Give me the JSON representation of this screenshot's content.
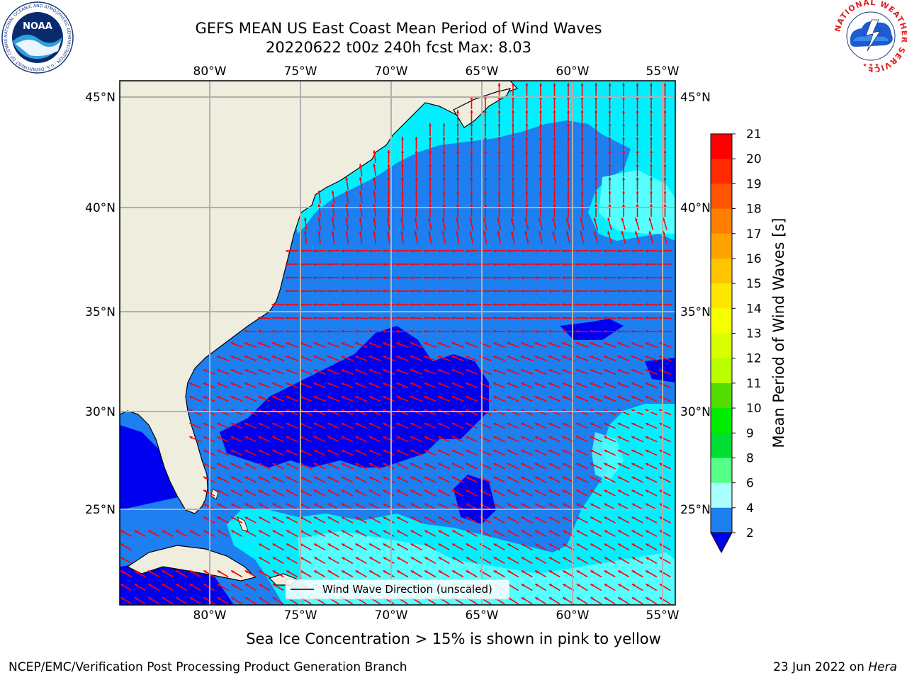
{
  "title": {
    "line1": "GEFS MEAN US East Coast Mean Period of Wind Waves",
    "line2": "20220622 t00z 240h fcst   Max: 8.03"
  },
  "map": {
    "lon_labels": [
      "80°W",
      "75°W",
      "70°W",
      "65°W",
      "60°W",
      "55°W"
    ],
    "lat_labels": [
      "45°N",
      "40°N",
      "35°N",
      "30°N",
      "25°N"
    ],
    "legend_label": "Wind Wave Direction (unscaled)",
    "colors": {
      "land": "#efedde",
      "ocean_2_4": "#1e7ff0",
      "ocean_lt2": "#0000f0",
      "ocean_4_6": "#00f0ff",
      "ocean_6_8": "#55ffff",
      "arrow": "#ff0000",
      "grid": "#b0b0b0"
    }
  },
  "colorbar": {
    "label": "Mean Period of Wind Waves [s]",
    "ticks": [
      "21",
      "20",
      "19",
      "18",
      "17",
      "16",
      "15",
      "14",
      "13",
      "12",
      "11",
      "10",
      "9",
      "8",
      "6",
      "4",
      "2"
    ],
    "colors": [
      "#ff0000",
      "#ff2a00",
      "#ff5500",
      "#ff7f00",
      "#ffa200",
      "#ffc400",
      "#ffe600",
      "#f5ff00",
      "#d7ff00",
      "#b8ff00",
      "#55dd00",
      "#00ee00",
      "#00dd33",
      "#55ff88",
      "#aaffff",
      "#55ffff",
      "#00ffff",
      "#1e7ff0"
    ],
    "under_color": "#0000f0"
  },
  "footer": {
    "ice_note": "Sea Ice Concentration > 15% is shown in pink to yellow",
    "credit": "NCEP/EMC/Verification Post Processing Product Generation Branch",
    "date": "23 Jun 2022 on ",
    "host": "Hera"
  },
  "logos": {
    "noaa_text": "NOAA",
    "noaa_ring": "NATIONAL OCEANIC AND ATMOSPHERIC ADMINISTRATION · U.S. DEPARTMENT OF COMMERCE ·",
    "nws_ring": "NATIONAL WEATHER SERVICE"
  }
}
